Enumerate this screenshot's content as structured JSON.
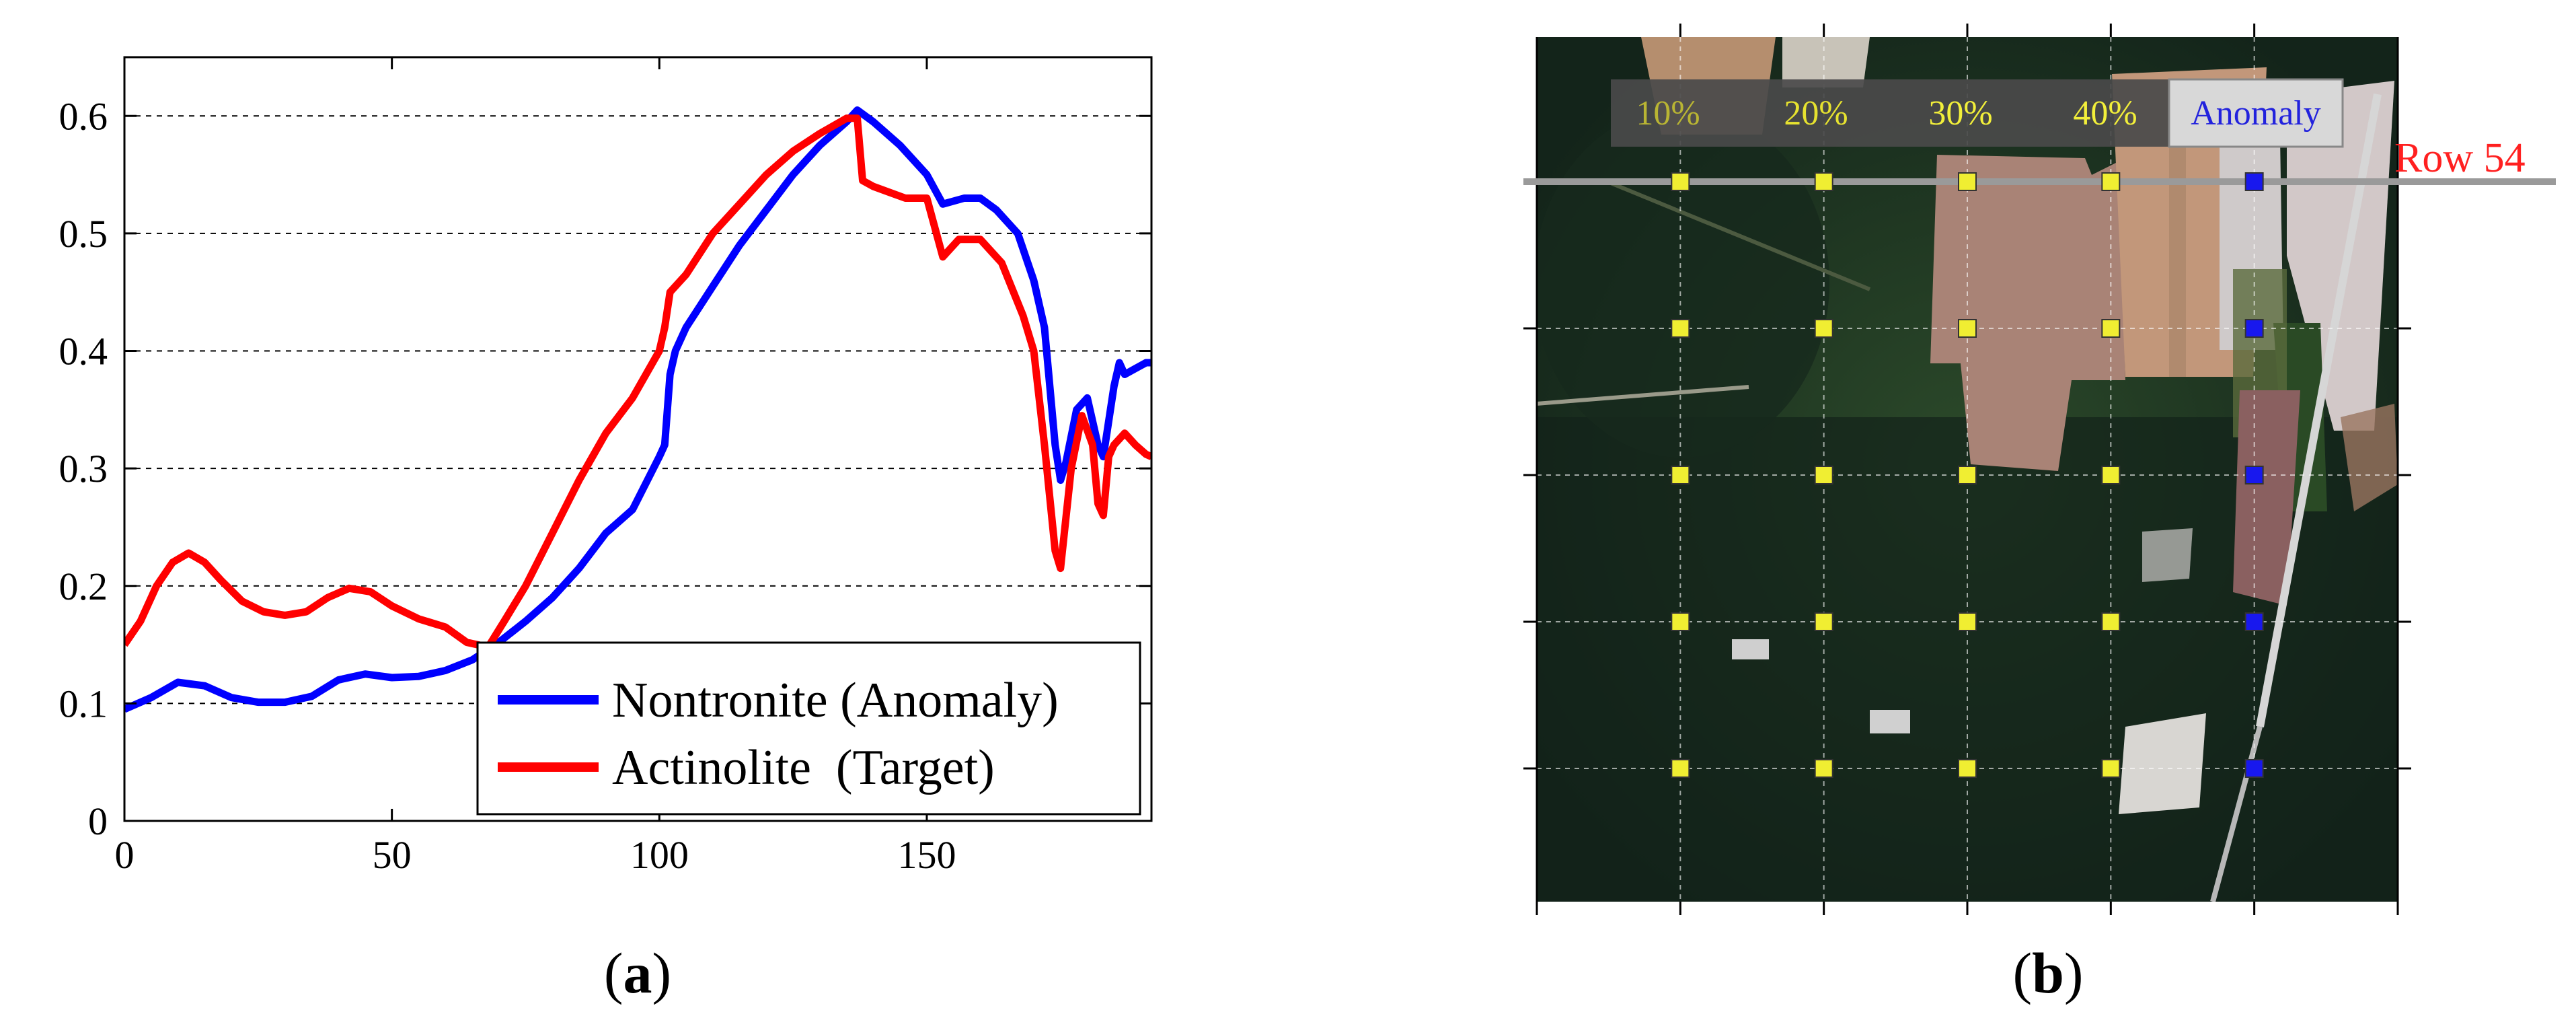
{
  "chart_data": [
    {
      "type": "line",
      "panel_label": "a",
      "xlim": [
        0,
        192
      ],
      "ylim": [
        0,
        0.65
      ],
      "x_ticks": [
        0,
        50,
        100,
        150
      ],
      "x_tick_labels": [
        "0",
        "50",
        "100",
        "150"
      ],
      "y_ticks": [
        0,
        0.1,
        0.2,
        0.3,
        0.4,
        0.5,
        0.6
      ],
      "y_tick_labels": [
        "0",
        "0.1",
        "0.2",
        "0.3",
        "0.4",
        "0.5",
        "0.6"
      ],
      "grid": "horizontal-dashed",
      "legend_position": "bottom-right",
      "series": [
        {
          "name": "Nontronite (Anomaly)",
          "color": "#0000ff",
          "points": [
            [
              0,
              0.095
            ],
            [
              5,
              0.105
            ],
            [
              10,
              0.118
            ],
            [
              15,
              0.115
            ],
            [
              20,
              0.105
            ],
            [
              25,
              0.101
            ],
            [
              30,
              0.101
            ],
            [
              35,
              0.106
            ],
            [
              40,
              0.12
            ],
            [
              45,
              0.125
            ],
            [
              50,
              0.122
            ],
            [
              55,
              0.123
            ],
            [
              60,
              0.128
            ],
            [
              65,
              0.137
            ],
            [
              70,
              0.152
            ],
            [
              75,
              0.17
            ],
            [
              80,
              0.19
            ],
            [
              85,
              0.215
            ],
            [
              90,
              0.245
            ],
            [
              95,
              0.265
            ],
            [
              100,
              0.31
            ],
            [
              101,
              0.32
            ],
            [
              102,
              0.38
            ],
            [
              103,
              0.4
            ],
            [
              105,
              0.42
            ],
            [
              110,
              0.455
            ],
            [
              115,
              0.49
            ],
            [
              120,
              0.52
            ],
            [
              125,
              0.55
            ],
            [
              130,
              0.575
            ],
            [
              135,
              0.595
            ],
            [
              137,
              0.605
            ],
            [
              140,
              0.595
            ],
            [
              145,
              0.575
            ],
            [
              150,
              0.55
            ],
            [
              153,
              0.525
            ],
            [
              157,
              0.53
            ],
            [
              160,
              0.53
            ],
            [
              163,
              0.52
            ],
            [
              167,
              0.5
            ],
            [
              170,
              0.46
            ],
            [
              172,
              0.42
            ],
            [
              174,
              0.32
            ],
            [
              175,
              0.29
            ],
            [
              176,
              0.305
            ],
            [
              178,
              0.35
            ],
            [
              180,
              0.36
            ],
            [
              182,
              0.32
            ],
            [
              183,
              0.31
            ],
            [
              185,
              0.37
            ],
            [
              186,
              0.39
            ],
            [
              187,
              0.38
            ],
            [
              189,
              0.385
            ],
            [
              191,
              0.39
            ],
            [
              192,
              0.39
            ]
          ]
        },
        {
          "name": "Actinolite  (Target)",
          "color": "#ff0000",
          "points": [
            [
              0,
              0.15
            ],
            [
              3,
              0.17
            ],
            [
              6,
              0.2
            ],
            [
              9,
              0.22
            ],
            [
              12,
              0.228
            ],
            [
              15,
              0.22
            ],
            [
              18,
              0.205
            ],
            [
              22,
              0.187
            ],
            [
              26,
              0.178
            ],
            [
              30,
              0.175
            ],
            [
              34,
              0.178
            ],
            [
              38,
              0.19
            ],
            [
              42,
              0.198
            ],
            [
              46,
              0.195
            ],
            [
              50,
              0.183
            ],
            [
              55,
              0.172
            ],
            [
              60,
              0.165
            ],
            [
              64,
              0.152
            ],
            [
              68,
              0.148
            ],
            [
              71,
              0.17
            ],
            [
              75,
              0.2
            ],
            [
              80,
              0.245
            ],
            [
              85,
              0.29
            ],
            [
              90,
              0.33
            ],
            [
              95,
              0.36
            ],
            [
              100,
              0.4
            ],
            [
              101,
              0.42
            ],
            [
              102,
              0.45
            ],
            [
              105,
              0.465
            ],
            [
              110,
              0.5
            ],
            [
              115,
              0.525
            ],
            [
              120,
              0.55
            ],
            [
              125,
              0.57
            ],
            [
              130,
              0.585
            ],
            [
              135,
              0.598
            ],
            [
              137,
              0.598
            ],
            [
              138,
              0.545
            ],
            [
              140,
              0.54
            ],
            [
              143,
              0.535
            ],
            [
              146,
              0.53
            ],
            [
              150,
              0.53
            ],
            [
              153,
              0.48
            ],
            [
              156,
              0.495
            ],
            [
              160,
              0.495
            ],
            [
              164,
              0.475
            ],
            [
              168,
              0.43
            ],
            [
              170,
              0.4
            ],
            [
              172,
              0.32
            ],
            [
              174,
              0.23
            ],
            [
              175,
              0.215
            ],
            [
              177,
              0.3
            ],
            [
              179,
              0.345
            ],
            [
              181,
              0.32
            ],
            [
              182,
              0.27
            ],
            [
              183,
              0.26
            ],
            [
              184,
              0.31
            ],
            [
              185,
              0.32
            ],
            [
              187,
              0.33
            ],
            [
              189,
              0.32
            ],
            [
              191,
              0.312
            ],
            [
              192,
              0.31
            ]
          ]
        }
      ]
    },
    {
      "type": "image-grid",
      "panel_label": "b",
      "row_label": "Row 54",
      "legend_labels": [
        "10%",
        "20%",
        "30%",
        "40%",
        "Anomaly"
      ],
      "legend_colors": [
        "#b9b533",
        "#e6e22f",
        "#f2ef3a",
        "#f2ef3a",
        "#2222dd"
      ],
      "target_marker_color": "#f0ee32",
      "anomaly_marker_color": "#1818ee",
      "grid_columns": 5,
      "grid_rows": 5
    }
  ],
  "captions": {
    "a": "a",
    "b": "b"
  }
}
